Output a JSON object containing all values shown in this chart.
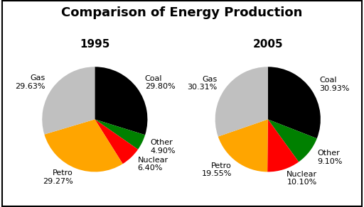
{
  "title": "Comparison of Energy Production",
  "title_fontsize": 13,
  "title_fontweight": "bold",
  "year1": "1995",
  "year2": "2005",
  "year_fontsize": 11,
  "year_fontweight": "bold",
  "labels": [
    "Coal",
    "Other",
    "Nuclear",
    "Petro",
    "Gas"
  ],
  "values_1995": [
    29.8,
    4.9,
    6.4,
    29.27,
    29.63
  ],
  "values_2005": [
    30.93,
    9.1,
    10.1,
    19.55,
    30.31
  ],
  "colors": [
    "#000000",
    "#008000",
    "#ff0000",
    "#ffa500",
    "#c0c0c0"
  ],
  "label_fontsize": 8,
  "background_color": "#ffffff",
  "startangle": 90
}
